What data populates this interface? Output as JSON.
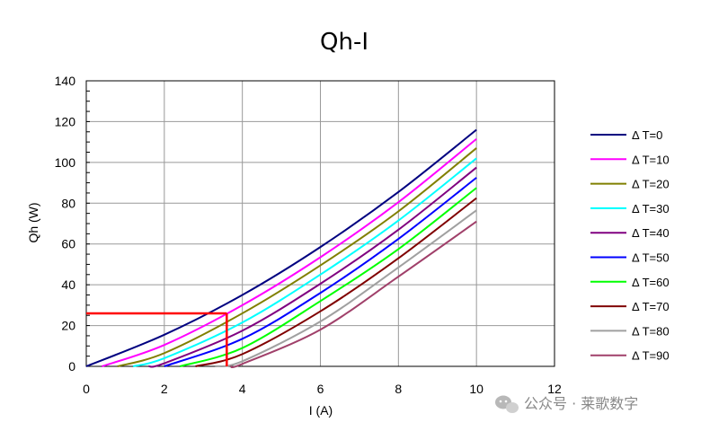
{
  "chart_data": {
    "type": "line",
    "title": "Qh-I",
    "xlabel": "I (A)",
    "ylabel": "Qh (W)",
    "xlim": [
      0,
      12
    ],
    "ylim": [
      0,
      140
    ],
    "xticks": [
      0,
      2,
      4,
      6,
      8,
      10,
      12
    ],
    "yticks": [
      0,
      20,
      40,
      60,
      80,
      100,
      120,
      140
    ],
    "grid": true,
    "legend_position": "right",
    "series": [
      {
        "name": "Δ T=0",
        "color": "#000080",
        "x": [
          0,
          2,
          4,
          6,
          8,
          10
        ],
        "y": [
          0,
          15.5,
          35,
          58.5,
          85.5,
          116
        ]
      },
      {
        "name": "Δ T=10",
        "color": "#ff00ff",
        "x": [
          0.4,
          2,
          4,
          6,
          8,
          10
        ],
        "y": [
          0,
          10.5,
          30,
          53.5,
          80.5,
          111.5
        ]
      },
      {
        "name": "Δ T=20",
        "color": "#808000",
        "x": [
          0.8,
          2,
          4,
          6,
          8,
          10
        ],
        "y": [
          0,
          6.5,
          26,
          49.5,
          76,
          107
        ]
      },
      {
        "name": "Δ T=30",
        "color": "#00ffff",
        "x": [
          1.2,
          2,
          4,
          6,
          8,
          10
        ],
        "y": [
          0,
          4,
          21.5,
          45,
          71.5,
          102
        ]
      },
      {
        "name": "Δ T=40",
        "color": "#800080",
        "x": [
          1.6,
          2,
          4,
          6,
          8,
          10
        ],
        "y": [
          0,
          1.5,
          17.5,
          40.5,
          67,
          97.5
        ]
      },
      {
        "name": "Δ T=50",
        "color": "#0000ff",
        "x": [
          2.0,
          4,
          6,
          8,
          10
        ],
        "y": [
          0,
          13.5,
          36,
          62.5,
          92.5
        ]
      },
      {
        "name": "Δ T=60",
        "color": "#00ff00",
        "x": [
          2.4,
          4,
          6,
          8,
          10
        ],
        "y": [
          0,
          9,
          32,
          57.5,
          87.5
        ]
      },
      {
        "name": "Δ T=70",
        "color": "#800000",
        "x": [
          2.8,
          4,
          6,
          8,
          10
        ],
        "y": [
          0,
          6,
          27,
          53,
          82.5
        ]
      },
      {
        "name": "Δ T=80",
        "color": "#a0a0a0",
        "x": [
          3.3,
          4,
          6,
          8,
          10
        ],
        "y": [
          0,
          2.5,
          22,
          48.5,
          76.5
        ]
      },
      {
        "name": "Δ T=90",
        "color": "#a0406a",
        "x": [
          3.7,
          4,
          6,
          8,
          10
        ],
        "y": [
          0,
          1.2,
          18,
          44,
          71
        ]
      }
    ],
    "annotation": {
      "color": "#ff0000",
      "x": 3.6,
      "y": 26
    }
  },
  "watermark": {
    "text": "公众号 · 莱歌数字"
  }
}
